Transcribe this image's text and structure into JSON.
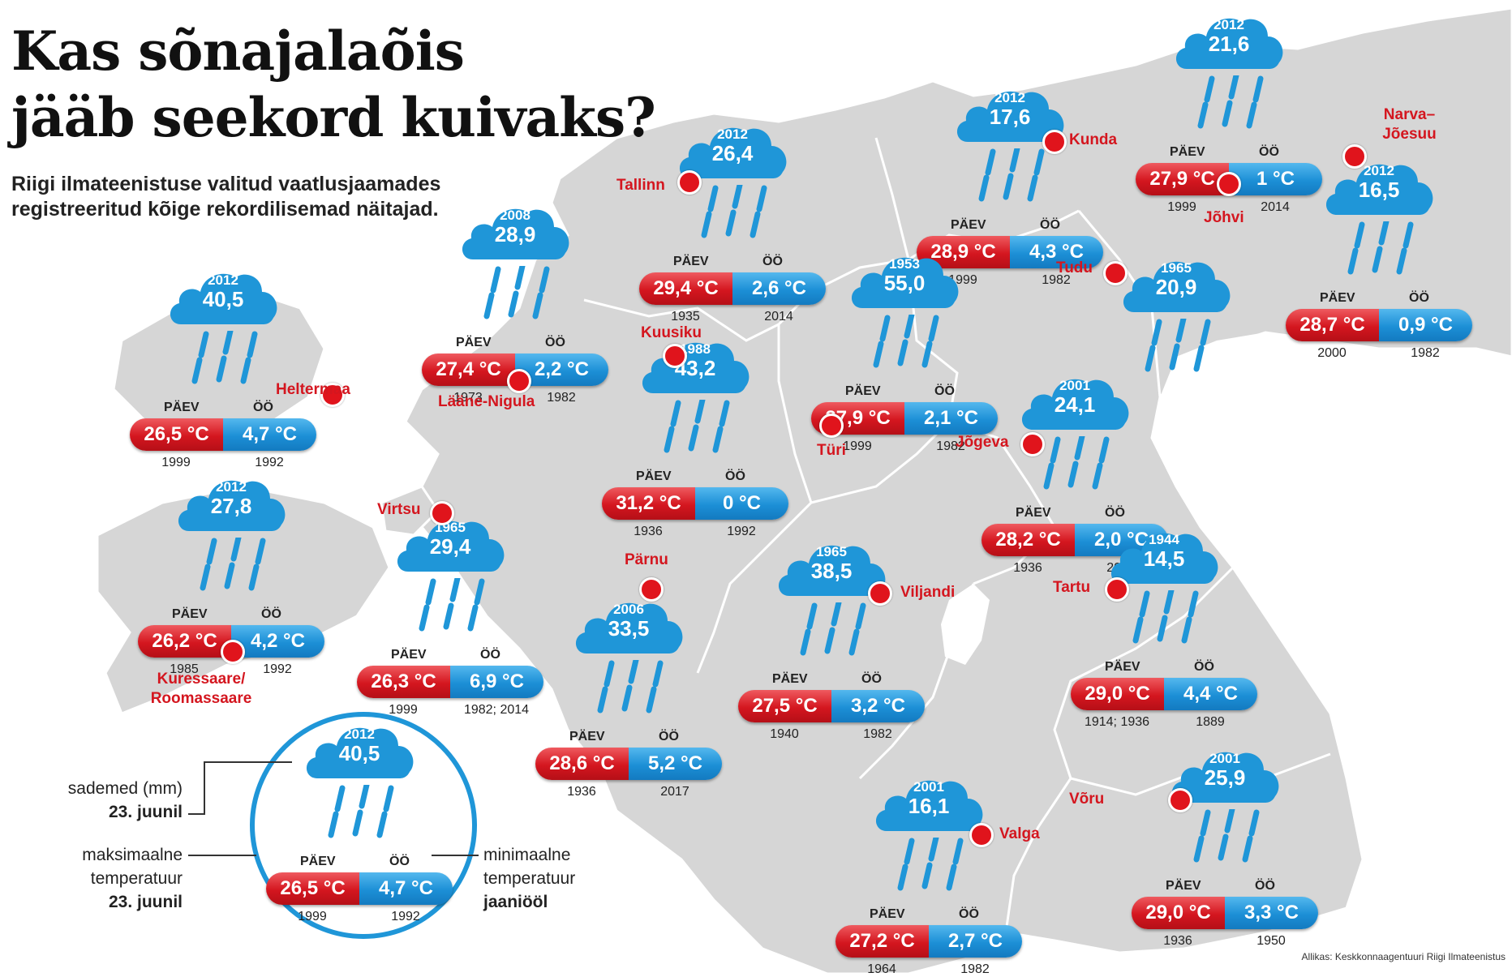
{
  "title_line1": "Kas sõnajalaõis",
  "title_line2": "jääb seekord kuivaks?",
  "subtitle": "Riigi ilmateenistuse valitud vaatlusjaamades registreeritud kõige rekordilisemad näitajad.",
  "day_label": "PÄEV",
  "night_label": "ÖÖ",
  "colors": {
    "land": "#d5d5d5",
    "sea": "#ffffff",
    "border": "#ffffff",
    "city_red": "#d4161f",
    "max_red": "#d4161f",
    "min_blue": "#1c8fd6",
    "cloud_blue": "#1f96d8"
  },
  "stations": [
    {
      "city": "Heltermaa",
      "rain_year": "2012",
      "rain_mm": "40,5",
      "max_temp": "26,5",
      "max_year": "1999",
      "min_temp": "4,7",
      "min_year": "1992"
    },
    {
      "city": "Lääne-Nigula",
      "rain_year": "2008",
      "rain_mm": "28,9",
      "max_temp": "27,4",
      "max_year": "1973",
      "min_temp": "2,2",
      "min_year": "1982"
    },
    {
      "city": "Tallinn",
      "rain_year": "2012",
      "rain_mm": "26,4",
      "max_temp": "29,4",
      "max_year": "1935",
      "min_temp": "2,6",
      "min_year": "2014"
    },
    {
      "city": "Kunda",
      "rain_year": "2012",
      "rain_mm": "17,6",
      "max_temp": "28,9",
      "max_year": "1999",
      "min_temp": "4,3",
      "min_year": "1982"
    },
    {
      "city": "Jõhvi",
      "rain_year": "2012",
      "rain_mm": "21,6",
      "max_temp": "27,9",
      "max_year": "1999",
      "min_temp": "1",
      "min_year": "2014"
    },
    {
      "city": "Narva–Jõesuu",
      "rain_year": "2012",
      "rain_mm": "16,5",
      "max_temp": "28,7",
      "max_year": "2000",
      "min_temp": "0,9",
      "min_year": "1982"
    },
    {
      "city": "Kuusiku",
      "rain_year": "1988",
      "rain_mm": "43,2",
      "max_temp": "31,2",
      "max_year": "1936",
      "min_temp": "0",
      "min_year": "1992"
    },
    {
      "city": "Türi",
      "rain_year": "1953",
      "rain_mm": "55,0",
      "max_temp": "27,9",
      "max_year": "1999",
      "min_temp": "2,1",
      "min_year": "1982"
    },
    {
      "city": "Tudu",
      "rain_year": "1965",
      "rain_mm": "20,9",
      "max_temp": "",
      "max_year": "",
      "min_temp": "",
      "min_year": ""
    },
    {
      "city": "Jõgeva",
      "rain_year": "2001",
      "rain_mm": "24,1",
      "max_temp": "28,2",
      "max_year": "1936",
      "min_temp": "2,0",
      "min_year": "2017"
    },
    {
      "city": "Kuressaare/ Roomassaare",
      "rain_year": "2012",
      "rain_mm": "27,8",
      "max_temp": "26,2",
      "max_year": "1985",
      "min_temp": "4,2",
      "min_year": "1992"
    },
    {
      "city": "Virtsu",
      "rain_year": "1965",
      "rain_mm": "29,4",
      "max_temp": "26,3",
      "max_year": "1999",
      "min_temp": "6,9",
      "min_year": "1982; 2014"
    },
    {
      "city": "Pärnu",
      "rain_year": "2006",
      "rain_mm": "33,5",
      "max_temp": "28,6",
      "max_year": "1936",
      "min_temp": "5,2",
      "min_year": "2017"
    },
    {
      "city": "Viljandi",
      "rain_year": "1965",
      "rain_mm": "38,5",
      "max_temp": "27,5",
      "max_year": "1940",
      "min_temp": "3,2",
      "min_year": "1982"
    },
    {
      "city": "Tartu",
      "rain_year": "1944",
      "rain_mm": "14,5",
      "max_temp": "29,0",
      "max_year": "1914; 1936",
      "min_temp": "4,4",
      "min_year": "1889"
    },
    {
      "city": "Valga",
      "rain_year": "2001",
      "rain_mm": "16,1",
      "max_temp": "27,2",
      "max_year": "1964",
      "min_temp": "2,7",
      "min_year": "1982"
    },
    {
      "city": "Võru",
      "rain_year": "2001",
      "rain_mm": "25,9",
      "max_temp": "29,0",
      "max_year": "1936",
      "min_temp": "3,3",
      "min_year": "1950"
    }
  ],
  "legend": {
    "rain_year": "2012",
    "rain_mm": "40,5",
    "max_temp": "26,5",
    "max_year": "1999",
    "min_temp": "4,7",
    "min_year": "1992",
    "rain_label_line1": "sademed (mm)",
    "rain_label_line2": "23. juunil",
    "max_label_line1": "maksimaalne",
    "max_label_line2": "temperatuur",
    "max_label_line3": "23. juunil",
    "min_label_line1": "minimaalne",
    "min_label_line2": "temperatuur",
    "min_label_line3": "jaaniööl"
  },
  "source": "Allikas: Keskkonnaagentuuri Riigi Ilmateenistus",
  "unit": "°C"
}
